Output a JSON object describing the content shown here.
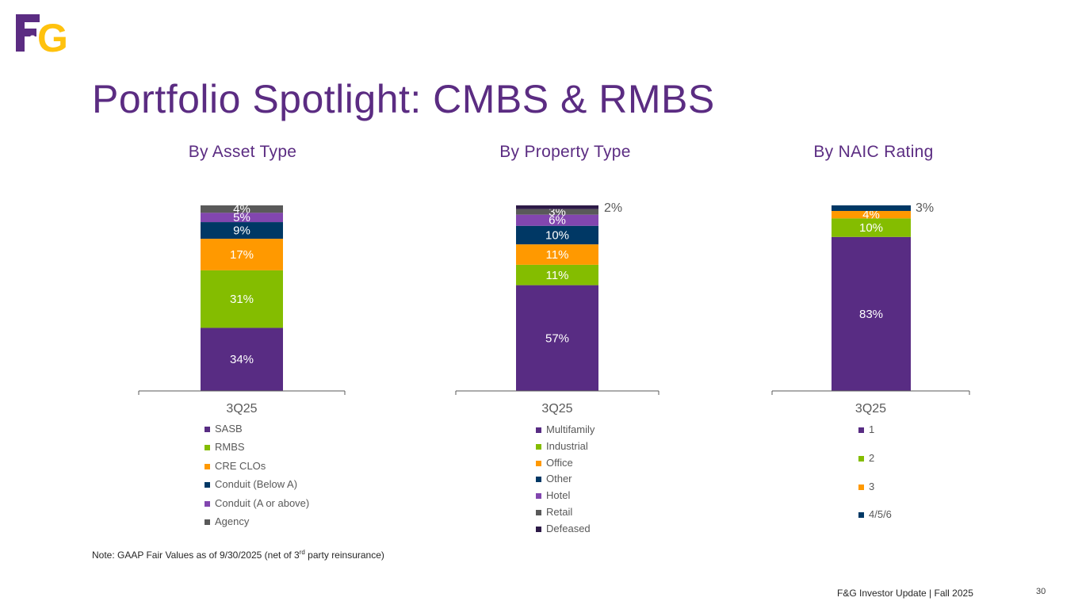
{
  "header": {
    "logo_text": "F&G",
    "title": "Portfolio Spotlight: CMBS & RMBS"
  },
  "colors": {
    "brand_purple": "#5b2c82",
    "logo_gold": "#ffc20e",
    "logo_purple": "#5b2c82"
  },
  "chart_data": [
    {
      "type": "bar",
      "stacked": true,
      "title": "By Asset Type",
      "categories": [
        "3Q25"
      ],
      "ylim": [
        0,
        100
      ],
      "legend_position": "bottom",
      "series": [
        {
          "name": "SASB",
          "values": [
            34
          ],
          "label": "34%",
          "color": "#582c83"
        },
        {
          "name": "RMBS",
          "values": [
            31
          ],
          "label": "31%",
          "color": "#84bd00"
        },
        {
          "name": "CRE CLOs",
          "values": [
            17
          ],
          "label": "17%",
          "color": "#ff9900"
        },
        {
          "name": "Conduit (Below A)",
          "values": [
            9
          ],
          "label": "9%",
          "color": "#003865"
        },
        {
          "name": "Conduit (A or above)",
          "values": [
            5
          ],
          "label": "5%",
          "color": "#8246af"
        },
        {
          "name": "Agency",
          "values": [
            4
          ],
          "label": "4%",
          "color": "#595959"
        }
      ]
    },
    {
      "type": "bar",
      "stacked": true,
      "title": "By Property Type",
      "categories": [
        "3Q25"
      ],
      "ylim": [
        0,
        100
      ],
      "legend_position": "bottom",
      "series": [
        {
          "name": "Multifamily",
          "values": [
            57
          ],
          "label": "57%",
          "color": "#582c83"
        },
        {
          "name": "Industrial",
          "values": [
            11
          ],
          "label": "11%",
          "color": "#84bd00"
        },
        {
          "name": "Office",
          "values": [
            11
          ],
          "label": "11%",
          "color": "#ff9900"
        },
        {
          "name": "Other",
          "values": [
            10
          ],
          "label": "10%",
          "color": "#003865"
        },
        {
          "name": "Hotel",
          "values": [
            6
          ],
          "label": "6%",
          "color": "#8246af"
        },
        {
          "name": "Retail",
          "values": [
            3
          ],
          "label": "3%",
          "color": "#595959"
        },
        {
          "name": "Defeased",
          "values": [
            2
          ],
          "label": "2%",
          "color": "#2d1a47",
          "label_outside": true
        }
      ]
    },
    {
      "type": "bar",
      "stacked": true,
      "title": "By NAIC Rating",
      "categories": [
        "3Q25"
      ],
      "ylim": [
        0,
        100
      ],
      "legend_position": "bottom",
      "series": [
        {
          "name": "1",
          "values": [
            83
          ],
          "label": "83%",
          "color": "#582c83"
        },
        {
          "name": "2",
          "values": [
            10
          ],
          "label": "10%",
          "color": "#84bd00"
        },
        {
          "name": "3",
          "values": [
            4
          ],
          "label": "4%",
          "color": "#ff9900"
        },
        {
          "name": "4/5/6",
          "values": [
            3
          ],
          "label": "3%",
          "color": "#003865",
          "label_outside": true
        }
      ]
    }
  ],
  "note": {
    "prefix": "Note: GAAP Fair Values as of 9/30/2025 (net of 3",
    "superscript": "rd",
    "suffix": " party reinsurance)"
  },
  "footer": {
    "text": "F&G Investor Update |  Fall 2025",
    "page_number": "30"
  }
}
